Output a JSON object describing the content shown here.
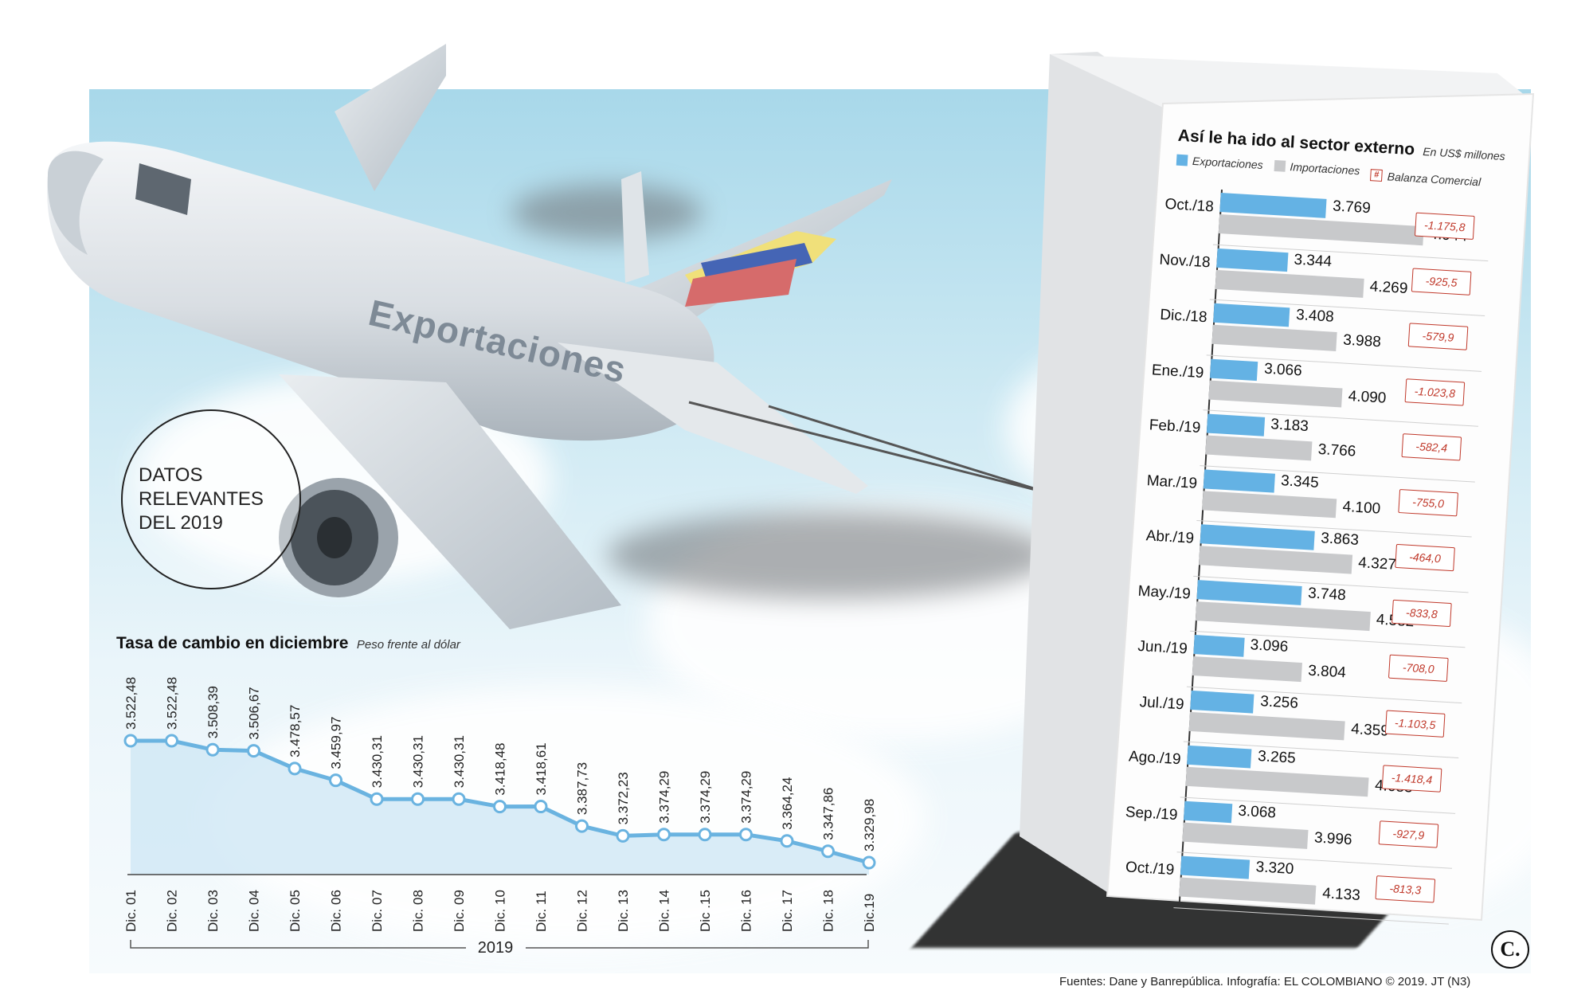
{
  "badge": {
    "lines": [
      "DATOS",
      "RELEVANTES",
      "DEL 2019"
    ]
  },
  "plane": {
    "label": "Exportaciones",
    "flag_colors": [
      "#f0e07a",
      "#4565b5",
      "#d66b6b"
    ]
  },
  "colors": {
    "exports": "#64b2e4",
    "imports": "#c8c9cb",
    "balance": "#c0392b",
    "rate_line": "#6ab3e0"
  },
  "exchange_rate": {
    "title": "Tasa de cambio en diciembre",
    "subtitle": "Peso frente al dólar",
    "year_label": "2019"
  },
  "external_sector": {
    "title": "Así le ha ido al sector externo",
    "unit": "En US$ millones",
    "legend": {
      "exports": "Exportaciones",
      "imports": "Importaciones",
      "balance_symbol": "#",
      "balance": "Balanza Comercial"
    },
    "rows": [
      {
        "month": "Oct./18",
        "exp": "3.769",
        "imp": "4.944",
        "bal": "-1.175,8"
      },
      {
        "month": "Nov./18",
        "exp": "3.344",
        "imp": "4.269",
        "bal": "-925,5"
      },
      {
        "month": "Dic./18",
        "exp": "3.408",
        "imp": "3.988",
        "bal": "-579,9"
      },
      {
        "month": "Ene./19",
        "exp": "3.066",
        "imp": "4.090",
        "bal": "-1.023,8"
      },
      {
        "month": "Feb./19",
        "exp": "3.183",
        "imp": "3.766",
        "bal": "-582,4"
      },
      {
        "month": "Mar./19",
        "exp": "3.345",
        "imp": "4.100",
        "bal": "-755,0"
      },
      {
        "month": "Abr./19",
        "exp": "3.863",
        "imp": "4.327",
        "bal": "-464,0"
      },
      {
        "month": "May./19",
        "exp": "3.748",
        "imp": "4.582",
        "bal": "-833,8"
      },
      {
        "month": "Jun./19",
        "exp": "3.096",
        "imp": "3.804",
        "bal": "-708,0"
      },
      {
        "month": "Jul./19",
        "exp": "3.256",
        "imp": "4.359",
        "bal": "-1.103,5"
      },
      {
        "month": "Ago./19",
        "exp": "3.265",
        "imp": "4.683",
        "bal": "-1.418,4"
      },
      {
        "month": "Sep./19",
        "exp": "3.068",
        "imp": "3.996",
        "bal": "-927,9"
      },
      {
        "month": "Oct./19",
        "exp": "3.320",
        "imp": "4.133",
        "bal": "-813,3"
      }
    ]
  },
  "footer": {
    "source": "Fuentes: Dane y Banrepública. Infografía: EL COLOMBIANO © 2019. JT (N3)",
    "logo": "C."
  },
  "chart_data": [
    {
      "type": "area",
      "title": "Tasa de cambio en diciembre",
      "subtitle": "Peso frente al dólar",
      "categories": [
        "Dic. 01",
        "Dic. 02",
        "Dic. 03",
        "Dic. 04",
        "Dic. 05",
        "Dic. 06",
        "Dic. 07",
        "Dic. 08",
        "Dic. 09",
        "Dic. 10",
        "Dic. 11",
        "Dic. 12",
        "Dic. 13",
        "Dic. 14",
        "Dic .15",
        "Dic. 16",
        "Dic. 17",
        "Dic. 18",
        "Dic.19"
      ],
      "values": [
        3522.48,
        3522.48,
        3508.39,
        3506.67,
        3478.57,
        3459.97,
        3430.31,
        3430.31,
        3430.31,
        3418.48,
        3418.61,
        3387.73,
        3372.23,
        3374.29,
        3374.29,
        3374.29,
        3364.24,
        3347.86,
        3329.98
      ],
      "labels": [
        "3.522,48",
        "3.522,48",
        "3.508,39",
        "3.506,67",
        "3.478,57",
        "3.459,97",
        "3.430,31",
        "3.430,31",
        "3.430,31",
        "3.418,48",
        "3.418,61",
        "3.387,73",
        "3.372,23",
        "3.374,29",
        "3.374,29",
        "3.374,29",
        "3.364,24",
        "3.347,86",
        "3.329,98"
      ],
      "xlabel": "2019",
      "ylim": [
        3250,
        3530
      ],
      "grid": false
    },
    {
      "type": "bar",
      "title": "Así le ha ido al sector externo",
      "subtitle": "En US$ millones",
      "categories": [
        "Oct./18",
        "Nov./18",
        "Dic./18",
        "Ene./19",
        "Feb./19",
        "Mar./19",
        "Abr./19",
        "May./19",
        "Jun./19",
        "Jul./19",
        "Ago./19",
        "Sep./19",
        "Oct./19"
      ],
      "series": [
        {
          "name": "Exportaciones",
          "values": [
            3769,
            3344,
            3408,
            3066,
            3183,
            3345,
            3863,
            3748,
            3096,
            3256,
            3265,
            3068,
            3320
          ]
        },
        {
          "name": "Importaciones",
          "values": [
            4944,
            4269,
            3988,
            4090,
            3766,
            4100,
            4327,
            4582,
            3804,
            4359,
            4683,
            3996,
            4133
          ]
        },
        {
          "name": "Balanza Comercial",
          "values": [
            -1175.8,
            -925.5,
            -579.9,
            -1023.8,
            -582.4,
            -755.0,
            -464.0,
            -833.8,
            -708.0,
            -1103.5,
            -1418.4,
            -927.9,
            -813.3
          ]
        }
      ],
      "orientation": "horizontal",
      "xlim": [
        2500,
        5000
      ],
      "legend": "top"
    }
  ]
}
